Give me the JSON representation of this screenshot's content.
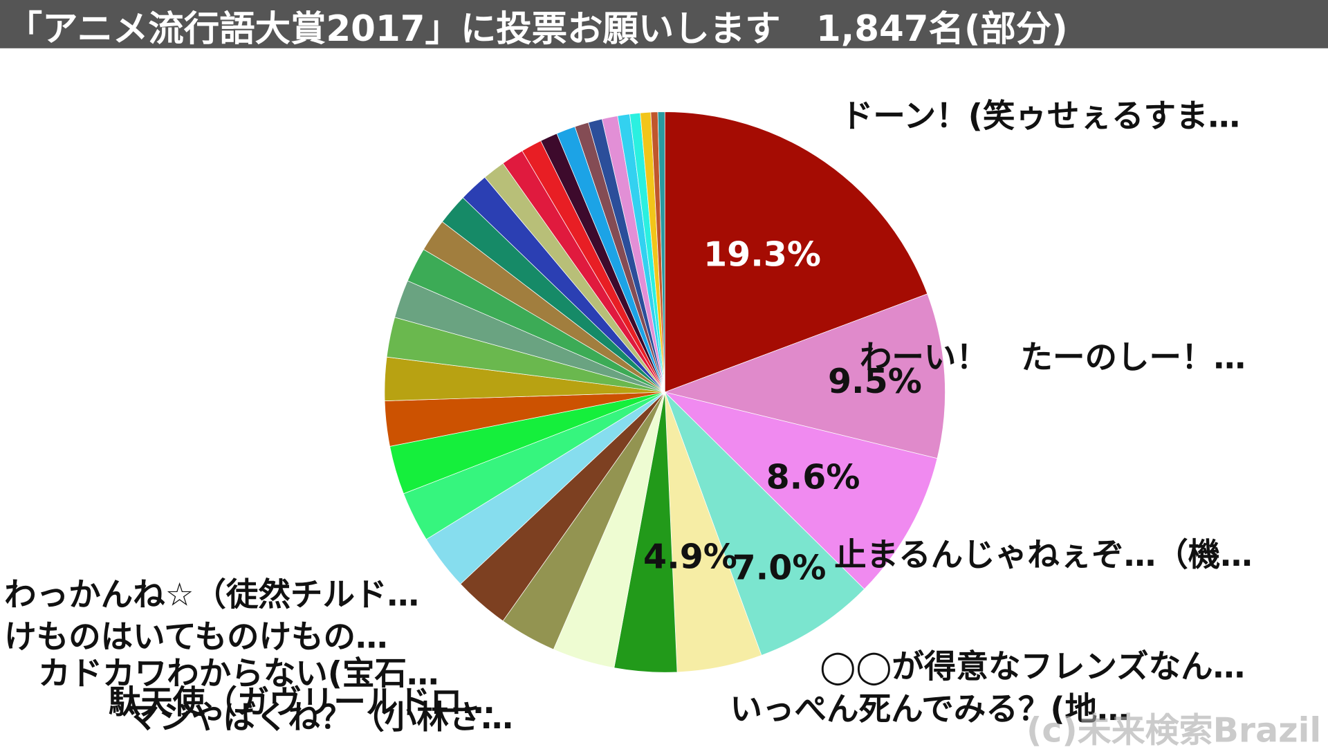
{
  "chart_data": {
    "type": "pie",
    "title": "「アニメ流行語大賞2017」に投票お願いします　1,847名(部分)",
    "watermark": "(c)未来検索Brazil",
    "categories": [
      "ドーン！(笑ゥせぇるすま…",
      "わーい！　たーのしー！…",
      "止まるんじゃねぇぞ…（機…",
      "◯◯が得意なフレンズなん…",
      "いっぺん死んでみる？(地…",
      "マジやばくね？（小林さ…",
      "駄天使（ガヴリールドロ…",
      "カドカワわからない(宝石…",
      "けものはいてものけもの…",
      "わっかんね☆（徒然チルド…",
      null,
      null,
      null,
      null,
      null,
      null,
      null,
      null,
      null,
      null,
      null,
      null,
      null,
      null,
      null,
      null,
      null,
      null,
      null,
      null,
      null,
      null,
      null
    ],
    "values": [
      19.3,
      9.5,
      8.6,
      7.0,
      4.9,
      3.6,
      3.6,
      3.3,
      3.2,
      3.2,
      2.9,
      2.8,
      2.6,
      2.5,
      2.3,
      2.2,
      2.0,
      1.9,
      1.8,
      1.7,
      1.3,
      1.3,
      1.2,
      1.0,
      1.1,
      0.8,
      0.8,
      0.9,
      0.7,
      0.6,
      0.6,
      0.4,
      0.4
    ],
    "value_labels": [
      "19.3%",
      "9.5%",
      "8.6%",
      "7.0%",
      "4.9%",
      null,
      null,
      null,
      null,
      null,
      null,
      null,
      null,
      null,
      null,
      null,
      null,
      null,
      null,
      null,
      null,
      null,
      null,
      null,
      null,
      null,
      null,
      null,
      null,
      null,
      null,
      null,
      null
    ],
    "colors": [
      "#a50c03",
      "#e08acb",
      "#f08af0",
      "#7be5cf",
      "#f6eda5",
      "#229a1a",
      "#eefcd2",
      "#939451",
      "#7d4021",
      "#86ddee",
      "#36f57e",
      "#15ef3c",
      "#cc5201",
      "#b8a212",
      "#6ab84e",
      "#6aa381",
      "#3cab56",
      "#a17e3e",
      "#168a67",
      "#2b3fb3",
      "#b8bf78",
      "#e01a3e",
      "#e81e24",
      "#3d0a2c",
      "#1ca3e6",
      "#844c54",
      "#2b4e9a",
      "#e28fd6",
      "#33d1f0",
      "#2bf0e0",
      "#f2c51a",
      "#c0562c",
      "#2a9aa0"
    ]
  }
}
